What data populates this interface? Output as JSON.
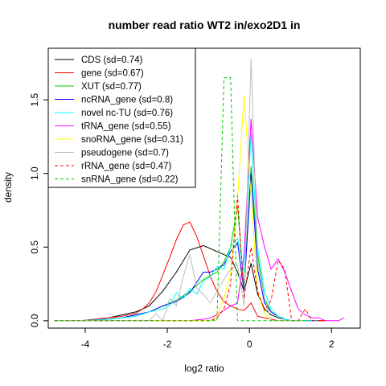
{
  "chart_data": {
    "type": "line",
    "title": "number read ratio WT2 in/exo2D1 in",
    "xlabel": "log2 ratio",
    "ylabel": "density",
    "xlim": [
      -4.9,
      2.7
    ],
    "ylim": [
      -0.05,
      1.85
    ],
    "xticks": [
      -4,
      -2,
      0,
      2
    ],
    "yticks": [
      0.0,
      0.5,
      1.0,
      1.5
    ],
    "xtick_labels": [
      "-4",
      "-2",
      "0",
      "2"
    ],
    "ytick_labels": [
      "0.0",
      "0.5",
      "1.0",
      "1.5"
    ],
    "legend_position": "top-left",
    "grid": false,
    "series": [
      {
        "name": "CDS (sd=0.74)",
        "color": "#000000",
        "dash": "solid",
        "x": [
          -4.75,
          -4.42,
          -4.09,
          -3.76,
          -3.43,
          -3.1,
          -2.77,
          -2.44,
          -2.11,
          -1.78,
          -1.45,
          -1.12,
          -0.79,
          -0.46,
          -0.29,
          -0.13,
          0.04,
          0.2,
          0.37,
          0.53,
          0.7,
          0.86,
          1.03,
          1.19,
          1.36,
          1.52,
          1.69,
          1.85
        ],
        "y": [
          0.0,
          0.0,
          0.0,
          0.01,
          0.02,
          0.04,
          0.06,
          0.1,
          0.2,
          0.33,
          0.48,
          0.51,
          0.47,
          0.43,
          0.33,
          0.2,
          0.39,
          0.18,
          0.08,
          0.04,
          0.02,
          0.01,
          0.0,
          0.0,
          0.0,
          0.0,
          0.0,
          0.0
        ]
      },
      {
        "name": "gene (sd=0.67)",
        "color": "#ff0000",
        "dash": "solid",
        "x": [
          -4.75,
          -4.42,
          -4.09,
          -3.76,
          -3.43,
          -3.1,
          -2.77,
          -2.6,
          -2.44,
          -2.27,
          -2.11,
          -1.94,
          -1.78,
          -1.61,
          -1.45,
          -1.28,
          -1.12,
          -0.95,
          -0.79,
          -0.62,
          -0.46,
          -0.29,
          -0.13,
          0.04,
          0.2,
          0.37,
          0.53,
          0.7,
          0.86,
          1.03,
          1.19,
          1.36,
          1.52,
          1.69,
          1.85
        ],
        "y": [
          0.0,
          0.0,
          0.0,
          0.01,
          0.02,
          0.03,
          0.05,
          0.08,
          0.12,
          0.2,
          0.31,
          0.43,
          0.55,
          0.65,
          0.67,
          0.57,
          0.44,
          0.3,
          0.2,
          0.13,
          0.1,
          0.08,
          0.07,
          0.12,
          0.03,
          0.02,
          0.01,
          0.0,
          0.0,
          0.0,
          0.0,
          0.0,
          0.0,
          0.0,
          0.0
        ]
      },
      {
        "name": "XUT (sd=0.77)",
        "color": "#00cc00",
        "dash": "solid",
        "x": [
          -4.75,
          -4.09,
          -3.43,
          -3.1,
          -2.77,
          -2.44,
          -2.11,
          -1.78,
          -1.45,
          -1.12,
          -0.79,
          -0.62,
          -0.46,
          -0.29,
          -0.13,
          0.04,
          0.2,
          0.37,
          0.53,
          0.7,
          0.86,
          1.03,
          1.36,
          1.69
        ],
        "y": [
          0.0,
          0.0,
          0.01,
          0.02,
          0.04,
          0.06,
          0.1,
          0.14,
          0.2,
          0.28,
          0.33,
          0.4,
          0.5,
          0.78,
          0.22,
          1.05,
          0.45,
          0.15,
          0.06,
          0.03,
          0.01,
          0.0,
          0.0,
          0.0
        ]
      },
      {
        "name": "ncRNA_gene (sd=0.8)",
        "color": "#0000ff",
        "dash": "solid",
        "x": [
          -4.75,
          -4.09,
          -3.43,
          -3.1,
          -2.77,
          -2.44,
          -2.11,
          -1.78,
          -1.45,
          -1.12,
          -0.95,
          -0.79,
          -0.62,
          -0.46,
          -0.29,
          -0.13,
          0.04,
          0.2,
          0.37,
          0.53,
          0.7,
          0.86,
          1.03,
          1.36,
          1.69
        ],
        "y": [
          0.0,
          0.0,
          0.01,
          0.02,
          0.04,
          0.06,
          0.1,
          0.13,
          0.19,
          0.33,
          0.33,
          0.35,
          0.38,
          0.47,
          0.53,
          0.2,
          1.0,
          0.35,
          0.12,
          0.06,
          0.03,
          0.01,
          0.0,
          0.0,
          0.0
        ]
      },
      {
        "name": "novel nc-TU (sd=0.76)",
        "color": "#00ffff",
        "dash": "solid",
        "x": [
          -4.75,
          -4.09,
          -3.43,
          -3.1,
          -2.77,
          -2.44,
          -2.11,
          -1.94,
          -1.78,
          -1.61,
          -1.45,
          -1.28,
          -1.12,
          -0.95,
          -0.79,
          -0.62,
          -0.46,
          -0.29,
          -0.13,
          0.04,
          0.2,
          0.37,
          0.53,
          0.7,
          0.86,
          1.03,
          1.36,
          1.69
        ],
        "y": [
          0.0,
          0.0,
          0.01,
          0.02,
          0.03,
          0.06,
          0.08,
          0.1,
          0.19,
          0.15,
          0.22,
          0.18,
          0.27,
          0.3,
          0.37,
          0.35,
          0.5,
          0.56,
          0.33,
          1.27,
          0.5,
          0.2,
          0.08,
          0.03,
          0.01,
          0.0,
          0.0,
          0.0
        ]
      },
      {
        "name": "tRNA_gene (sd=0.55)",
        "color": "#ff00ff",
        "dash": "solid",
        "x": [
          -4.75,
          -1.45,
          -1.12,
          -0.95,
          -0.79,
          -0.62,
          -0.46,
          -0.29,
          -0.13,
          0.04,
          0.2,
          0.37,
          0.53,
          0.7,
          0.86,
          1.03,
          1.19,
          1.36,
          1.52,
          1.69,
          1.85,
          2.02,
          2.18,
          2.3
        ],
        "y": [
          0.0,
          0.0,
          0.01,
          0.02,
          0.04,
          0.07,
          0.1,
          0.12,
          0.45,
          1.37,
          0.7,
          0.5,
          0.35,
          0.42,
          0.33,
          0.2,
          0.08,
          0.04,
          0.02,
          0.02,
          0.0,
          0.0,
          0.0,
          0.02
        ]
      },
      {
        "name": "snoRNA_gene (sd=0.31)",
        "color": "#ffff00",
        "dash": "solid",
        "x": [
          -4.75,
          -1.12,
          -0.95,
          -0.79,
          -0.62,
          -0.46,
          -0.29,
          -0.13,
          0.04,
          0.2,
          0.37,
          0.53,
          0.7,
          0.86,
          1.03,
          1.36
        ],
        "y": [
          0.0,
          0.0,
          0.0,
          0.03,
          0.15,
          0.33,
          0.83,
          1.53,
          0.85,
          0.2,
          0.05,
          0.0,
          0.0,
          0.0,
          0.0,
          0.0
        ]
      },
      {
        "name": "pseudogene (sd=0.7)",
        "color": "#bebebe",
        "dash": "solid",
        "x": [
          -4.75,
          -3.1,
          -2.77,
          -2.44,
          -2.27,
          -2.11,
          -1.94,
          -1.78,
          -1.61,
          -1.45,
          -1.28,
          -1.12,
          -0.95,
          -0.79,
          -0.62,
          -0.46,
          -0.29,
          -0.13,
          0.04,
          0.2,
          0.37,
          0.53,
          0.7,
          0.86,
          1.03,
          1.36
        ],
        "y": [
          0.0,
          0.0,
          0.0,
          0.0,
          0.05,
          0.0,
          0.15,
          0.1,
          0.3,
          0.45,
          0.22,
          0.18,
          0.12,
          0.2,
          0.28,
          0.35,
          0.38,
          0.1,
          1.78,
          0.4,
          0.15,
          0.0,
          0.0,
          0.0,
          0.0,
          0.0
        ]
      },
      {
        "name": "rRNA_gene (sd=0.47)",
        "color": "#ff0000",
        "dash": "dashed",
        "x": [
          -4.75,
          -1.12,
          -0.95,
          -0.79,
          -0.62,
          -0.46,
          -0.29,
          -0.13,
          0.04,
          0.2,
          0.37,
          0.53,
          0.7,
          0.86,
          1.03,
          1.19,
          1.36,
          1.52,
          1.69,
          1.85
        ],
        "y": [
          0.0,
          0.0,
          0.0,
          0.02,
          0.08,
          0.25,
          0.85,
          0.15,
          0.5,
          0.2,
          0.07,
          0.14,
          0.41,
          0.35,
          0.0,
          0.0,
          0.08,
          0.0,
          0.0,
          0.0
        ]
      },
      {
        "name": "snRNA_gene (sd=0.22)",
        "color": "#00cc00",
        "dash": "dashed",
        "x": [
          -4.75,
          -1.12,
          -0.95,
          -0.79,
          -0.62,
          -0.46,
          -0.29,
          -0.13,
          0.04,
          0.2,
          0.37,
          0.53,
          0.7,
          1.03,
          1.36
        ],
        "y": [
          0.0,
          0.0,
          0.0,
          0.0,
          1.65,
          1.65,
          0.0,
          0.0,
          0.0,
          0.0,
          0.0,
          0.0,
          0.0,
          0.0,
          0.0
        ]
      }
    ]
  }
}
